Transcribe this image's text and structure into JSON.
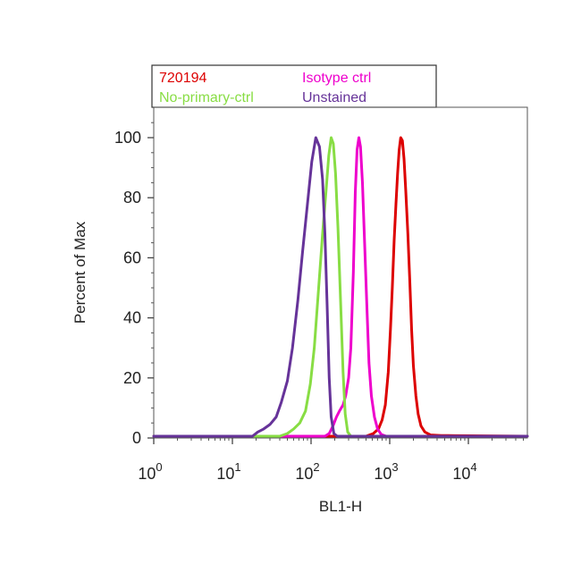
{
  "chart_data": {
    "type": "line",
    "title": "",
    "xlabel": "BL1-H",
    "ylabel": "Percent of Max",
    "x_scale": "log",
    "xlim": [
      1,
      60000
    ],
    "ylim": [
      0,
      110
    ],
    "x_ticks": [
      {
        "value": 1,
        "base": "10",
        "exp": "0"
      },
      {
        "value": 10,
        "base": "10",
        "exp": "1"
      },
      {
        "value": 100,
        "base": "10",
        "exp": "2"
      },
      {
        "value": 1000,
        "base": "10",
        "exp": "3"
      },
      {
        "value": 10000,
        "base": "10",
        "exp": "4"
      }
    ],
    "y_ticks": [
      0,
      20,
      40,
      60,
      80,
      100
    ],
    "grid": false,
    "legend_position": "top",
    "series": [
      {
        "name": "720194",
        "color": "#dd0000",
        "points": [
          [
            1,
            0.6
          ],
          [
            500,
            0.6
          ],
          [
            620,
            1.5
          ],
          [
            720,
            3
          ],
          [
            800,
            6
          ],
          [
            880,
            11
          ],
          [
            960,
            22
          ],
          [
            1020,
            36
          ],
          [
            1080,
            50
          ],
          [
            1140,
            66
          ],
          [
            1200,
            78
          ],
          [
            1260,
            88
          ],
          [
            1320,
            96
          ],
          [
            1380,
            100
          ],
          [
            1450,
            99
          ],
          [
            1520,
            93
          ],
          [
            1600,
            82
          ],
          [
            1700,
            68
          ],
          [
            1800,
            52
          ],
          [
            1900,
            36
          ],
          [
            2000,
            24
          ],
          [
            2150,
            14
          ],
          [
            2300,
            8
          ],
          [
            2500,
            4
          ],
          [
            2800,
            2
          ],
          [
            3300,
            1
          ],
          [
            4500,
            0.8
          ],
          [
            5500,
            0.8
          ],
          [
            60000,
            0.6
          ]
        ]
      },
      {
        "name": "Isotype ctrl",
        "color": "#ee00cc",
        "points": [
          [
            1,
            0.6
          ],
          [
            150,
            0.6
          ],
          [
            170,
            1.5
          ],
          [
            190,
            4
          ],
          [
            210,
            7
          ],
          [
            230,
            9
          ],
          [
            255,
            11
          ],
          [
            275,
            14
          ],
          [
            300,
            20
          ],
          [
            320,
            30
          ],
          [
            345,
            55
          ],
          [
            365,
            82
          ],
          [
            385,
            96
          ],
          [
            405,
            100
          ],
          [
            425,
            97
          ],
          [
            450,
            85
          ],
          [
            480,
            65
          ],
          [
            510,
            45
          ],
          [
            545,
            25
          ],
          [
            585,
            14
          ],
          [
            640,
            7
          ],
          [
            700,
            3
          ],
          [
            780,
            1.2
          ],
          [
            900,
            0.6
          ],
          [
            60000,
            0.6
          ]
        ]
      },
      {
        "name": "No-primary-ctrl",
        "color": "#88dd44",
        "points": [
          [
            1,
            0.6
          ],
          [
            40,
            0.6
          ],
          [
            50,
            1.5
          ],
          [
            60,
            3
          ],
          [
            72,
            5
          ],
          [
            85,
            9
          ],
          [
            98,
            18
          ],
          [
            110,
            30
          ],
          [
            125,
            50
          ],
          [
            140,
            68
          ],
          [
            155,
            82
          ],
          [
            168,
            94
          ],
          [
            180,
            100
          ],
          [
            192,
            98
          ],
          [
            205,
            88
          ],
          [
            220,
            70
          ],
          [
            238,
            45
          ],
          [
            255,
            22
          ],
          [
            272,
            8
          ],
          [
            292,
            2
          ],
          [
            320,
            0.6
          ],
          [
            60000,
            0.6
          ]
        ]
      },
      {
        "name": "Unstained",
        "color": "#663399",
        "points": [
          [
            1,
            0.6
          ],
          [
            18,
            0.6
          ],
          [
            21,
            2
          ],
          [
            25,
            3
          ],
          [
            30,
            4.5
          ],
          [
            36,
            7
          ],
          [
            42,
            12
          ],
          [
            50,
            19
          ],
          [
            58,
            30
          ],
          [
            68,
            46
          ],
          [
            78,
            62
          ],
          [
            90,
            78
          ],
          [
            102,
            92
          ],
          [
            115,
            100
          ],
          [
            128,
            97
          ],
          [
            140,
            86
          ],
          [
            150,
            68
          ],
          [
            160,
            44
          ],
          [
            170,
            20
          ],
          [
            180,
            7
          ],
          [
            195,
            1.5
          ],
          [
            215,
            0.6
          ],
          [
            60000,
            0.6
          ]
        ]
      }
    ]
  }
}
